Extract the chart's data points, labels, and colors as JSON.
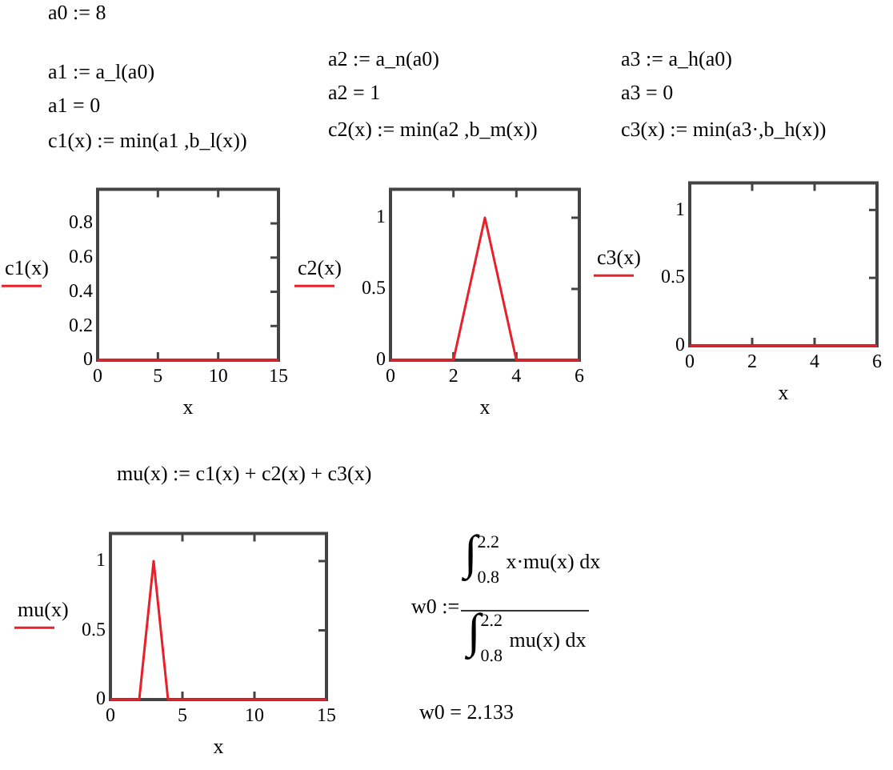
{
  "chart_data": [
    {
      "type": "line",
      "xlabel": "x",
      "x": [
        0,
        15
      ],
      "series": [
        {
          "name": "c1(x)",
          "color": "#e8202a",
          "values": [
            0,
            0
          ]
        }
      ],
      "xlim": [
        0,
        15
      ],
      "xticks": [
        0,
        5,
        10,
        15
      ],
      "ylim": [
        0,
        1
      ],
      "yticks": [
        0,
        0.2,
        0.4,
        0.6,
        0.8
      ],
      "legend": "left",
      "annotations": [
        "a0 := 8",
        "a1 := a_l(a0)",
        "a1 = 0",
        "c1(x) := min(a1 ,b_l(x))"
      ]
    },
    {
      "type": "line",
      "xlabel": "x",
      "x": [
        0,
        2,
        3,
        4,
        6
      ],
      "series": [
        {
          "name": "c2(x)",
          "color": "#e8202a",
          "values": [
            0,
            0,
            1,
            0,
            0
          ]
        }
      ],
      "xlim": [
        0,
        6
      ],
      "xticks": [
        0,
        2,
        4,
        6
      ],
      "ylim": [
        0,
        1.2
      ],
      "yticks": [
        0,
        0.5,
        1
      ],
      "legend": "left",
      "annotations": [
        "a2 := a_n(a0)",
        "a2 = 1",
        "c2(x) := min(a2 ,b_m(x))"
      ]
    },
    {
      "type": "line",
      "xlabel": "x",
      "x": [
        0,
        6
      ],
      "series": [
        {
          "name": "c3(x)",
          "color": "#e8202a",
          "values": [
            0,
            0
          ]
        }
      ],
      "xlim": [
        0,
        6
      ],
      "xticks": [
        0,
        2,
        4,
        6
      ],
      "ylim": [
        0,
        1.2
      ],
      "yticks": [
        0,
        0.5,
        1
      ],
      "legend": "left",
      "annotations": [
        "a3 := a_h(a0)",
        "a3 = 0",
        "c3(x) := min(a3·,b_h(x))"
      ]
    },
    {
      "type": "line",
      "xlabel": "x",
      "x": [
        0,
        2,
        3,
        4,
        15
      ],
      "series": [
        {
          "name": "mu(x)",
          "color": "#e8202a",
          "values": [
            0,
            0,
            1,
            0,
            0
          ]
        }
      ],
      "xlim": [
        0,
        15
      ],
      "xticks": [
        0,
        5,
        10,
        15
      ],
      "ylim": [
        0,
        1.2
      ],
      "yticks": [
        0,
        0.5,
        1
      ],
      "legend": "left",
      "annotations": [
        "mu(x) := c1(x) + c2(x) + c3(x)"
      ]
    },
    {
      "type": "other",
      "annotations": [
        "w0 :=",
        "∫$_{0.8}$$^{2.2}$ x·mu(x) dx",
        "∫$_{0.8}$$^{2.2}$ mu(x) dx",
        "w0 = 2.133"
      ]
    }
  ]
}
